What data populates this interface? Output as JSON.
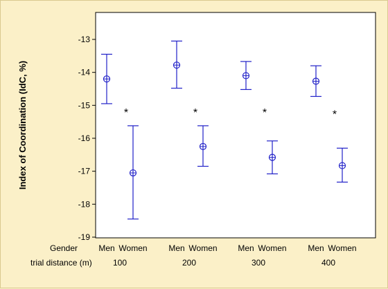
{
  "chart_data": {
    "type": "errorbar",
    "ylabel": "Index of Coordination (IdC, %)",
    "ylim": [
      -19,
      -13
    ],
    "yticks": [
      "-13",
      "-14",
      "-15",
      "-16",
      "-17",
      "-18",
      "-19"
    ],
    "ytick_values": [
      -13,
      -14,
      -15,
      -16,
      -17,
      -18,
      -19
    ],
    "x_rows": [
      {
        "label": "Gender",
        "values": [
          "Men",
          "Women",
          "Men",
          "Women",
          "Men",
          "Women",
          "Men",
          "Women"
        ]
      },
      {
        "label": "trial distance (m)",
        "values": [
          "100",
          "200",
          "300",
          "400"
        ]
      }
    ],
    "points": [
      {
        "gender": "Men",
        "distance": "100",
        "mean": -14.2,
        "lower": -14.95,
        "upper": -13.45
      },
      {
        "gender": "Women",
        "distance": "100",
        "mean": -17.05,
        "lower": -18.45,
        "upper": -15.62
      },
      {
        "gender": "Men",
        "distance": "200",
        "mean": -13.78,
        "lower": -14.48,
        "upper": -13.05
      },
      {
        "gender": "Women",
        "distance": "200",
        "mean": -16.25,
        "lower": -16.85,
        "upper": -15.62
      },
      {
        "gender": "Men",
        "distance": "300",
        "mean": -14.1,
        "lower": -14.52,
        "upper": -13.67
      },
      {
        "gender": "Women",
        "distance": "300",
        "mean": -16.58,
        "lower": -17.08,
        "upper": -16.08
      },
      {
        "gender": "Men",
        "distance": "400",
        "mean": -14.27,
        "lower": -14.73,
        "upper": -13.8
      },
      {
        "gender": "Women",
        "distance": "400",
        "mean": -16.83,
        "lower": -17.33,
        "upper": -16.3
      }
    ],
    "annotations": [
      "*",
      "*",
      "*",
      "*"
    ],
    "annotation_y": [
      -15.1,
      -15.1,
      -15.1,
      -15.15
    ],
    "grid": false,
    "colors": {
      "marker": "#2020c8",
      "axis": "#000000",
      "plot_bg": "#ffffff",
      "background": "#fbf0c8"
    }
  }
}
